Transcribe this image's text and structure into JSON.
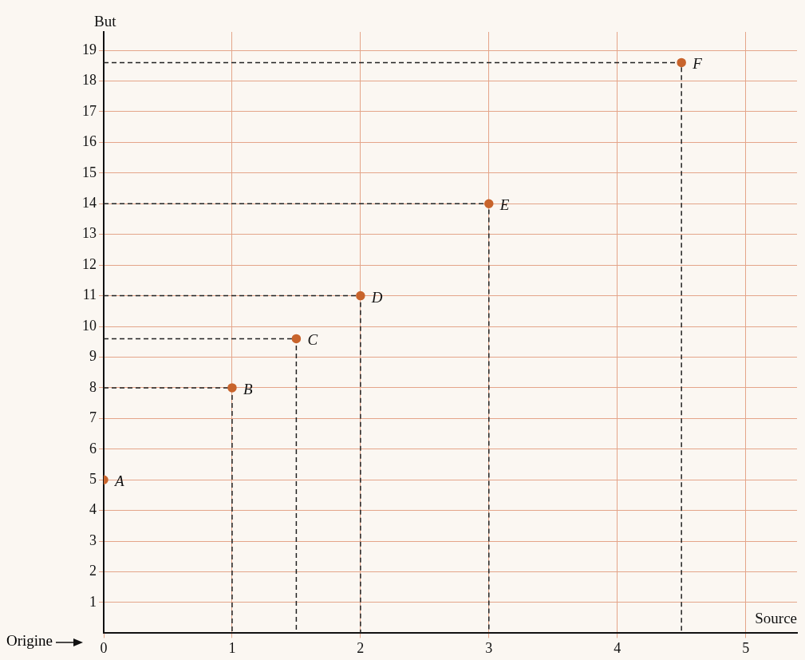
{
  "chart_data": {
    "type": "scatter",
    "xlabel": "Source",
    "ylabel": "But",
    "x": [
      0,
      1,
      1.5,
      2,
      3,
      4.5
    ],
    "series": [
      {
        "color": "#c8642c",
        "values": [
          5,
          8,
          9.6,
          11,
          14,
          18.6
        ]
      },
      {
        "type": "line",
        "color": "#222222",
        "line_style": "dashed",
        "marker": "none",
        "x": [
          0,
          1,
          1
        ],
        "values": [
          8,
          8,
          0
        ]
      },
      {
        "type": "line",
        "color": "#222222",
        "line_style": "dashed",
        "marker": "none",
        "x": [
          0,
          1.5,
          1.5
        ],
        "values": [
          9.6,
          9.6,
          0
        ]
      },
      {
        "type": "line",
        "color": "#222222",
        "line_style": "dashed",
        "marker": "none",
        "x": [
          0,
          2,
          2
        ],
        "values": [
          11,
          11,
          0
        ]
      },
      {
        "type": "line",
        "color": "#222222",
        "line_style": "dashed",
        "marker": "none",
        "x": [
          0,
          3,
          3
        ],
        "values": [
          14,
          14,
          0
        ]
      },
      {
        "type": "line",
        "color": "#222222",
        "line_style": "dashed",
        "marker": "none",
        "x": [
          0,
          4.5,
          4.5
        ],
        "values": [
          18.6,
          18.6,
          0
        ]
      }
    ],
    "xlim": [
      0,
      5.4
    ],
    "ylim": [
      0,
      19.6
    ],
    "xticks": [
      0,
      1,
      2,
      3,
      4,
      5
    ],
    "yticks": [
      1,
      2,
      3,
      4,
      5,
      6,
      7,
      8,
      9,
      10,
      11,
      12,
      13,
      14,
      15,
      16,
      17,
      18,
      19
    ],
    "grid": true,
    "legend": false,
    "marker": "circle",
    "annotations": [
      {
        "text": "A",
        "x": 0,
        "y": 5
      },
      {
        "text": "B",
        "x": 1,
        "y": 8
      },
      {
        "text": "C",
        "x": 1.5,
        "y": 9.6
      },
      {
        "text": "D",
        "x": 2,
        "y": 11
      },
      {
        "text": "E",
        "x": 3,
        "y": 14
      },
      {
        "text": "F",
        "x": 4.5,
        "y": 18.6
      },
      "Origine"
    ]
  }
}
